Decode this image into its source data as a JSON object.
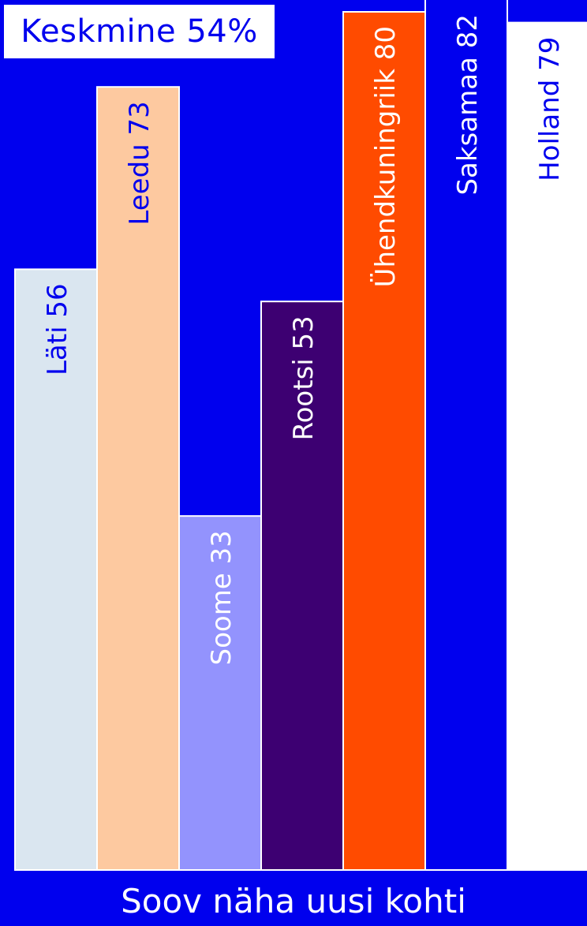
{
  "chart_data": {
    "type": "bar",
    "categories": [
      "Läti",
      "Leedu",
      "Soome",
      "Rootsi",
      "Ühendkuningriik",
      "Saksamaa",
      "Holland"
    ],
    "values": [
      56,
      73,
      33,
      53,
      80,
      82,
      79
    ],
    "data_labels": [
      "Läti 56",
      "Leedu 73",
      "Soome 33",
      "Rootsi 53",
      "Ühendkuningriik 80",
      "Saksamaa 82",
      "Holland 79"
    ],
    "colors": [
      "#dae6f0",
      "#fdc9a0",
      "#9393fd",
      "#3d0072",
      "#ff4b00",
      "#0000ee",
      "#ffffff"
    ],
    "label_colors": [
      "#0000ee",
      "#0000ee",
      "#ffffff",
      "#ffffff",
      "#ffffff",
      "#ffffff",
      "#0000ee"
    ],
    "average_label": "Keskmine 54%",
    "xlabel": "Soov näha uusi kohti",
    "ylim": [
      0,
      82
    ],
    "background": "#0000ee",
    "grid": false
  }
}
